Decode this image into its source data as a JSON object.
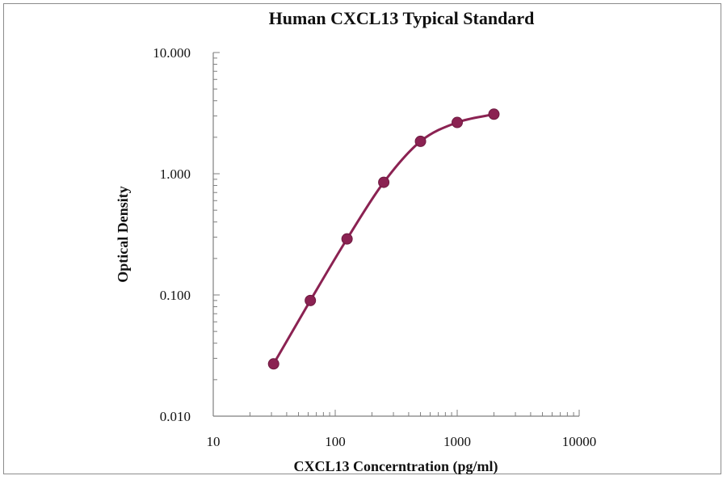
{
  "chart_data": {
    "type": "line",
    "title": "Human CXCL13 Typical Standard",
    "xlabel": "CXCL13 Concerntration (pg/ml)",
    "ylabel": "Optical Density",
    "x_scale": "log",
    "y_scale": "log",
    "xlim": [
      10,
      10000
    ],
    "ylim": [
      0.01,
      10
    ],
    "x_tick_labels": [
      "10",
      "100",
      "1000",
      "10000"
    ],
    "y_tick_labels": [
      "10.000",
      "1.000",
      "0.100",
      "0.010"
    ],
    "grid": false,
    "legend": false,
    "series_color": "#8b2252",
    "series": [
      {
        "x": [
          31.25,
          62.5,
          125,
          250,
          500,
          1000,
          2000
        ],
        "y": [
          0.027,
          0.09,
          0.29,
          0.85,
          1.85,
          2.65,
          3.1
        ]
      }
    ]
  }
}
